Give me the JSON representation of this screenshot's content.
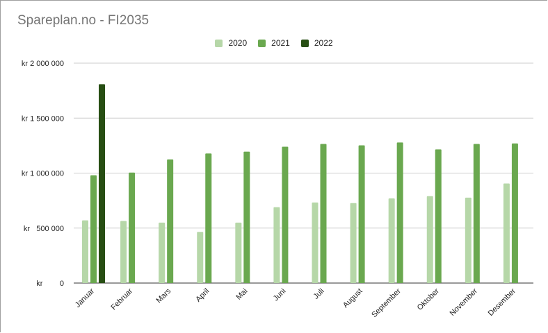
{
  "title": "Spareplan.no - FI2035",
  "chart_data": {
    "type": "bar",
    "title": "Spareplan.no - FI2035",
    "xlabel": "",
    "ylabel": "",
    "categories": [
      "Januar",
      "Februar",
      "Mars",
      "April",
      "Mai",
      "Juni",
      "Juli",
      "August",
      "September",
      "Oktober",
      "November",
      "Desember"
    ],
    "series": [
      {
        "name": "2020",
        "color": "#b6d7a8",
        "values": [
          570000,
          565000,
          550000,
          465000,
          550000,
          690000,
          733000,
          727000,
          770000,
          790000,
          777000,
          905000
        ]
      },
      {
        "name": "2021",
        "color": "#6aa84f",
        "values": [
          980000,
          1005000,
          1125000,
          1178000,
          1195000,
          1240000,
          1265000,
          1252000,
          1278000,
          1215000,
          1265000,
          1270000
        ]
      },
      {
        "name": "2022",
        "color": "#274e13",
        "values": [
          1808000,
          null,
          null,
          null,
          null,
          null,
          null,
          null,
          null,
          null,
          null,
          null
        ]
      }
    ],
    "ylim": [
      0,
      2000000
    ],
    "yticks": [
      {
        "value": 0,
        "label": "kr        0"
      },
      {
        "value": 500000,
        "label": "kr   500 000"
      },
      {
        "value": 1000000,
        "label": "kr 1 000 000"
      },
      {
        "value": 1500000,
        "label": "kr 1 500 000"
      },
      {
        "value": 2000000,
        "label": "kr 2 000 000"
      }
    ],
    "grid": true,
    "legend_position": "top"
  }
}
